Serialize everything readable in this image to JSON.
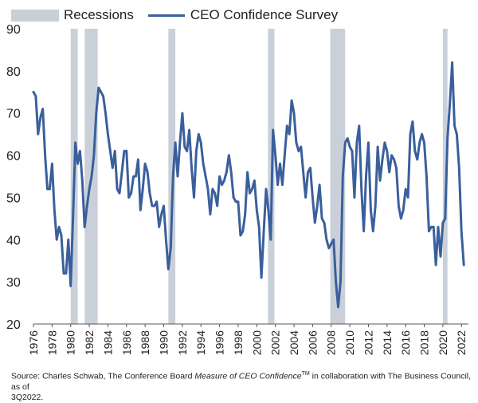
{
  "chart_data": {
    "type": "line",
    "legend": {
      "recessions_label": "Recessions",
      "series_label": "CEO Confidence Survey"
    },
    "colors": {
      "line": "#3a5f9c",
      "recession": "#c9d0d9",
      "axis": "#555555"
    },
    "ylim": [
      20,
      90
    ],
    "yticks": [
      90,
      80,
      70,
      60,
      50,
      40,
      30,
      20
    ],
    "xlim": [
      1976,
      2022.75
    ],
    "xticks": [
      "1976",
      "1978",
      "1980",
      "1982",
      "1984",
      "1986",
      "1988",
      "1990",
      "1992",
      "1994",
      "1996",
      "1998",
      "2000",
      "2002",
      "2004",
      "2006",
      "2008",
      "2010",
      "2012",
      "2014",
      "2016",
      "2018",
      "2020",
      "2022"
    ],
    "recessions": [
      [
        1980.0,
        1980.75
      ],
      [
        1981.5,
        1982.9
      ],
      [
        1990.5,
        1991.25
      ],
      [
        2001.2,
        2001.9
      ],
      [
        2007.9,
        2009.5
      ],
      [
        2020.0,
        2020.5
      ]
    ],
    "series": [
      {
        "name": "CEO Confidence Survey",
        "values": [
          [
            1976.0,
            75
          ],
          [
            1976.25,
            74
          ],
          [
            1976.5,
            65
          ],
          [
            1976.75,
            69
          ],
          [
            1977.0,
            71
          ],
          [
            1977.25,
            60
          ],
          [
            1977.5,
            52
          ],
          [
            1977.75,
            52
          ],
          [
            1978.0,
            58
          ],
          [
            1978.25,
            47
          ],
          [
            1978.5,
            40
          ],
          [
            1978.75,
            43
          ],
          [
            1979.0,
            41
          ],
          [
            1979.25,
            32
          ],
          [
            1979.5,
            32
          ],
          [
            1979.75,
            40
          ],
          [
            1980.0,
            29
          ],
          [
            1980.25,
            45
          ],
          [
            1980.5,
            63
          ],
          [
            1980.75,
            58
          ],
          [
            1981.0,
            61
          ],
          [
            1981.25,
            54
          ],
          [
            1981.5,
            43
          ],
          [
            1981.75,
            48
          ],
          [
            1982.0,
            52
          ],
          [
            1982.25,
            55
          ],
          [
            1982.5,
            60
          ],
          [
            1982.75,
            70
          ],
          [
            1983.0,
            76
          ],
          [
            1983.25,
            75
          ],
          [
            1983.5,
            74
          ],
          [
            1983.75,
            70
          ],
          [
            1984.0,
            65
          ],
          [
            1984.25,
            61
          ],
          [
            1984.5,
            57
          ],
          [
            1984.75,
            61
          ],
          [
            1985.0,
            52
          ],
          [
            1985.25,
            51
          ],
          [
            1985.5,
            56
          ],
          [
            1985.75,
            61
          ],
          [
            1986.0,
            61
          ],
          [
            1986.25,
            50
          ],
          [
            1986.5,
            51
          ],
          [
            1986.75,
            55
          ],
          [
            1987.0,
            55
          ],
          [
            1987.25,
            59
          ],
          [
            1987.5,
            47
          ],
          [
            1987.75,
            52
          ],
          [
            1988.0,
            58
          ],
          [
            1988.25,
            56
          ],
          [
            1988.5,
            51
          ],
          [
            1988.75,
            48
          ],
          [
            1989.0,
            48
          ],
          [
            1989.25,
            49
          ],
          [
            1989.5,
            43
          ],
          [
            1989.75,
            46
          ],
          [
            1990.0,
            48
          ],
          [
            1990.25,
            40
          ],
          [
            1990.5,
            33
          ],
          [
            1990.75,
            38
          ],
          [
            1991.0,
            55
          ],
          [
            1991.25,
            63
          ],
          [
            1991.5,
            55
          ],
          [
            1991.75,
            63
          ],
          [
            1992.0,
            70
          ],
          [
            1992.25,
            62
          ],
          [
            1992.5,
            61
          ],
          [
            1992.75,
            66
          ],
          [
            1993.0,
            57
          ],
          [
            1993.25,
            50
          ],
          [
            1993.5,
            61
          ],
          [
            1993.75,
            65
          ],
          [
            1994.0,
            63
          ],
          [
            1994.25,
            58
          ],
          [
            1994.5,
            55
          ],
          [
            1994.75,
            52
          ],
          [
            1995.0,
            46
          ],
          [
            1995.25,
            52
          ],
          [
            1995.5,
            51
          ],
          [
            1995.75,
            48
          ],
          [
            1996.0,
            55
          ],
          [
            1996.25,
            53
          ],
          [
            1996.5,
            54
          ],
          [
            1996.75,
            56
          ],
          [
            1997.0,
            60
          ],
          [
            1997.25,
            56
          ],
          [
            1997.5,
            50
          ],
          [
            1997.75,
            49
          ],
          [
            1998.0,
            49
          ],
          [
            1998.25,
            41
          ],
          [
            1998.5,
            42
          ],
          [
            1998.75,
            46
          ],
          [
            1999.0,
            56
          ],
          [
            1999.25,
            51
          ],
          [
            1999.5,
            52
          ],
          [
            1999.75,
            54
          ],
          [
            2000.0,
            47
          ],
          [
            2000.25,
            43
          ],
          [
            2000.5,
            31
          ],
          [
            2000.75,
            42
          ],
          [
            2001.0,
            52
          ],
          [
            2001.25,
            47
          ],
          [
            2001.5,
            40
          ],
          [
            2001.75,
            66
          ],
          [
            2002.0,
            60
          ],
          [
            2002.25,
            53
          ],
          [
            2002.5,
            58
          ],
          [
            2002.75,
            53
          ],
          [
            2003.0,
            60
          ],
          [
            2003.25,
            67
          ],
          [
            2003.5,
            65
          ],
          [
            2003.75,
            73
          ],
          [
            2004.0,
            70
          ],
          [
            2004.25,
            63
          ],
          [
            2004.5,
            61
          ],
          [
            2004.75,
            62
          ],
          [
            2005.0,
            56
          ],
          [
            2005.25,
            50
          ],
          [
            2005.5,
            56
          ],
          [
            2005.75,
            57
          ],
          [
            2006.0,
            50
          ],
          [
            2006.25,
            44
          ],
          [
            2006.5,
            48
          ],
          [
            2006.75,
            53
          ],
          [
            2007.0,
            45
          ],
          [
            2007.25,
            44
          ],
          [
            2007.5,
            40
          ],
          [
            2007.75,
            38
          ],
          [
            2008.0,
            39
          ],
          [
            2008.25,
            40
          ],
          [
            2008.5,
            30
          ],
          [
            2008.75,
            24
          ],
          [
            2009.0,
            30
          ],
          [
            2009.25,
            55
          ],
          [
            2009.5,
            63
          ],
          [
            2009.75,
            64
          ],
          [
            2010.0,
            62
          ],
          [
            2010.25,
            61
          ],
          [
            2010.5,
            50
          ],
          [
            2010.75,
            63
          ],
          [
            2011.0,
            67
          ],
          [
            2011.25,
            52
          ],
          [
            2011.5,
            42
          ],
          [
            2011.75,
            55
          ],
          [
            2012.0,
            63
          ],
          [
            2012.25,
            47
          ],
          [
            2012.5,
            42
          ],
          [
            2012.75,
            48
          ],
          [
            2013.0,
            62
          ],
          [
            2013.25,
            54
          ],
          [
            2013.5,
            59
          ],
          [
            2013.75,
            63
          ],
          [
            2014.0,
            61
          ],
          [
            2014.25,
            56
          ],
          [
            2014.5,
            60
          ],
          [
            2014.75,
            59
          ],
          [
            2015.0,
            57
          ],
          [
            2015.25,
            48
          ],
          [
            2015.5,
            45
          ],
          [
            2015.75,
            47
          ],
          [
            2016.0,
            52
          ],
          [
            2016.25,
            50
          ],
          [
            2016.5,
            65
          ],
          [
            2016.75,
            68
          ],
          [
            2017.0,
            61
          ],
          [
            2017.25,
            59
          ],
          [
            2017.5,
            63
          ],
          [
            2017.75,
            65
          ],
          [
            2018.0,
            63
          ],
          [
            2018.25,
            55
          ],
          [
            2018.5,
            42
          ],
          [
            2018.75,
            43
          ],
          [
            2019.0,
            43
          ],
          [
            2019.25,
            34
          ],
          [
            2019.5,
            43
          ],
          [
            2019.75,
            36
          ],
          [
            2020.0,
            44
          ],
          [
            2020.25,
            45
          ],
          [
            2020.5,
            64
          ],
          [
            2020.75,
            72
          ],
          [
            2021.0,
            82
          ],
          [
            2021.25,
            67
          ],
          [
            2021.5,
            65
          ],
          [
            2021.75,
            57
          ],
          [
            2022.0,
            42
          ],
          [
            2022.25,
            34
          ]
        ]
      }
    ]
  },
  "source": {
    "prefix": "Source: Charles Schwab, The Conference Board ",
    "measure": "Measure of CEO Confidence",
    "tm": "TM",
    "suffix": " in collaboration with The Business Council, as of",
    "line2": "3Q2022."
  }
}
